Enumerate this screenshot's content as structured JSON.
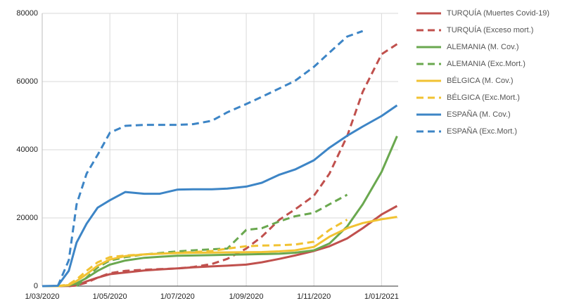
{
  "chart_data": {
    "type": "line",
    "x": [
      "2020-03-01",
      "2020-03-15",
      "2020-03-25",
      "2020-04-01",
      "2020-04-10",
      "2020-04-20",
      "2020-05-01",
      "2020-05-15",
      "2020-06-01",
      "2020-06-15",
      "2020-07-01",
      "2020-07-15",
      "2020-08-01",
      "2020-08-15",
      "2020-09-01",
      "2020-09-15",
      "2020-10-01",
      "2020-10-15",
      "2020-11-01",
      "2020-11-15",
      "2020-12-01",
      "2020-12-15",
      "2021-01-01",
      "2021-01-15"
    ],
    "xlim": [
      "2020-03-01",
      "2021-01-16"
    ],
    "xticks": [
      {
        "value": "2020-03-01",
        "label": "1/03/2020"
      },
      {
        "value": "2020-05-01",
        "label": "1/05/2020"
      },
      {
        "value": "2020-07-01",
        "label": "1/07/2020"
      },
      {
        "value": "2020-09-01",
        "label": "1/09/2020"
      },
      {
        "value": "2020-11-01",
        "label": "1/11/2020"
      },
      {
        "value": "2021-01-01",
        "label": "1/01/2021"
      }
    ],
    "ylim": [
      0,
      80000
    ],
    "yticks": [
      0,
      20000,
      40000,
      60000,
      80000
    ],
    "grid": true,
    "legend": "right",
    "series": [
      {
        "name": "TURQUÍA (Muertes Covid-19)",
        "color": "#c0504d",
        "dashed": false,
        "values": [
          0,
          0,
          50,
          200,
          1400,
          2500,
          3500,
          4000,
          4600,
          4900,
          5200,
          5500,
          5800,
          6000,
          6300,
          7000,
          8000,
          9000,
          10300,
          11700,
          14000,
          17000,
          21000,
          23500
        ]
      },
      {
        "name": "TURQUÍA (Exceso mort.)",
        "color": "#c0504d",
        "dashed": true,
        "values": [
          null,
          null,
          0,
          200,
          1000,
          2500,
          3800,
          4500,
          4800,
          5000,
          5200,
          5600,
          6500,
          8000,
          11000,
          14500,
          19500,
          22500,
          26500,
          33000,
          44000,
          57000,
          68000,
          71000
        ]
      },
      {
        "name": "ALEMANIA (M. Cov.)",
        "color": "#6aa84f",
        "dashed": false,
        "values": [
          0,
          0,
          200,
          800,
          2400,
          4500,
          6300,
          7500,
          8300,
          8600,
          8900,
          9000,
          9100,
          9200,
          9300,
          9400,
          9500,
          9800,
          10500,
          12500,
          17500,
          24000,
          33500,
          44000
        ]
      },
      {
        "name": "ALEMANIA (Exc.Mort.)",
        "color": "#6aa84f",
        "dashed": true,
        "values": [
          null,
          null,
          null,
          0,
          2500,
          5500,
          7500,
          8500,
          9300,
          9700,
          10200,
          10500,
          10800,
          11000,
          16500,
          17000,
          19000,
          20500,
          21500,
          24000,
          26800,
          null,
          null,
          null
        ]
      },
      {
        "name": "BÉLGICA (M. Cov.)",
        "color": "#f1c232",
        "dashed": false,
        "values": [
          0,
          0,
          300,
          1500,
          3500,
          6000,
          7800,
          8800,
          9300,
          9500,
          9700,
          9800,
          9850,
          9900,
          9950,
          10000,
          10200,
          10500,
          11500,
          14500,
          17000,
          18500,
          19600,
          20300
        ]
      },
      {
        "name": "BÉLGICA (Exc.Mort.)",
        "color": "#f1c232",
        "dashed": true,
        "values": [
          null,
          0,
          500,
          2000,
          4500,
          7000,
          8500,
          9000,
          9300,
          9500,
          9800,
          10000,
          10300,
          11000,
          11700,
          11900,
          12000,
          12200,
          13000,
          16500,
          19500,
          null,
          null,
          null
        ]
      },
      {
        "name": "ESPAÑA (M. Cov.)",
        "color": "#3d85c6",
        "dashed": false,
        "values": [
          0,
          100,
          4500,
          12800,
          18300,
          23000,
          25200,
          27600,
          27100,
          27100,
          28300,
          28400,
          28400,
          28600,
          29200,
          30300,
          32700,
          34200,
          36900,
          40600,
          44100,
          46800,
          49900,
          53000
        ]
      },
      {
        "name": "ESPAÑA (Exc.Mort.)",
        "color": "#3d85c6",
        "dashed": true,
        "values": [
          null,
          0,
          7600,
          24000,
          33000,
          38500,
          45000,
          47000,
          47300,
          47300,
          47300,
          47500,
          48500,
          51000,
          53400,
          55500,
          58000,
          60200,
          64300,
          68500,
          73200,
          74800,
          null,
          null
        ]
      }
    ]
  }
}
